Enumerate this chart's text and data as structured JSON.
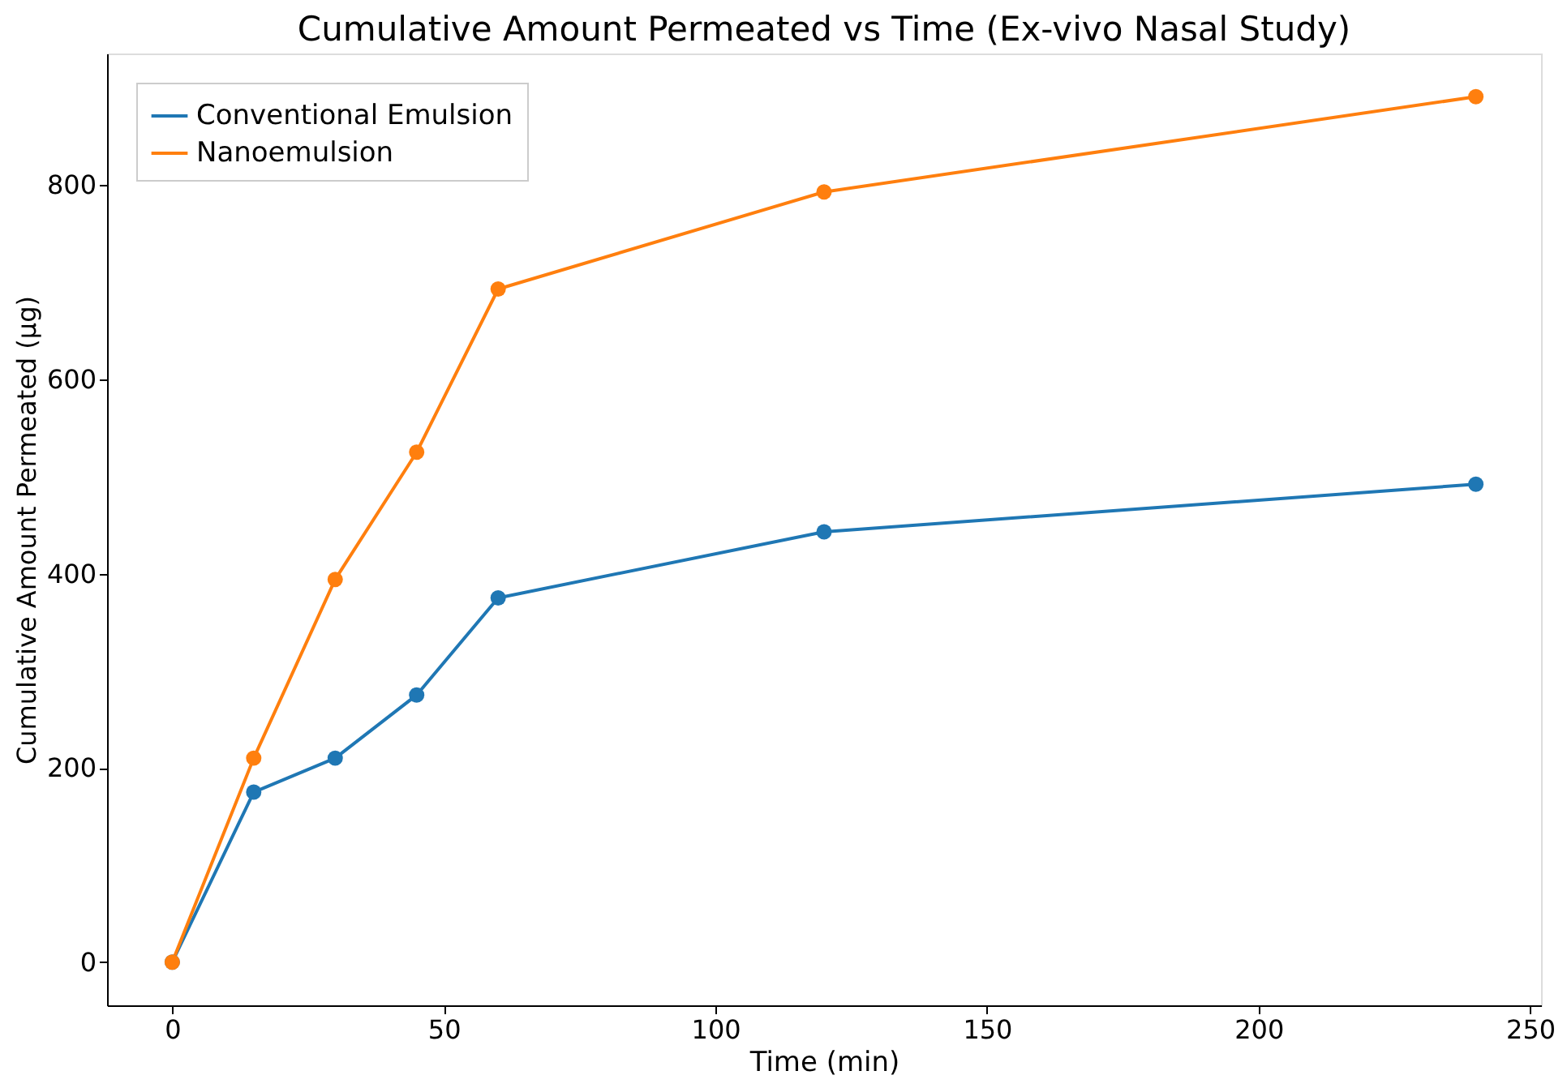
{
  "chart_data": {
    "type": "line",
    "title": "Cumulative Amount Permeated vs Time (Ex-vivo Nasal Study)",
    "xlabel": "Time (min)",
    "ylabel": "Cumulative Amount Permeated (µg)",
    "x": [
      0,
      15,
      30,
      45,
      60,
      120,
      240
    ],
    "series": [
      {
        "name": "Conventional Emulsion",
        "color": "#1f77b4",
        "values": [
          0,
          175,
          210,
          275,
          375,
          443,
          492
        ]
      },
      {
        "name": "Nanoemulsion",
        "color": "#ff7f0e",
        "values": [
          0,
          210,
          394,
          525,
          693,
          793,
          891
        ]
      }
    ],
    "xlim": [
      -12,
      252
    ],
    "xticks": [
      0,
      50,
      100,
      150,
      200,
      250
    ],
    "ylim": [
      -44.5,
      935.5
    ],
    "yticks": [
      0,
      200,
      400,
      600,
      800
    ],
    "grid": false,
    "legend": "top left",
    "marker": "circle",
    "line_style": "solid"
  }
}
